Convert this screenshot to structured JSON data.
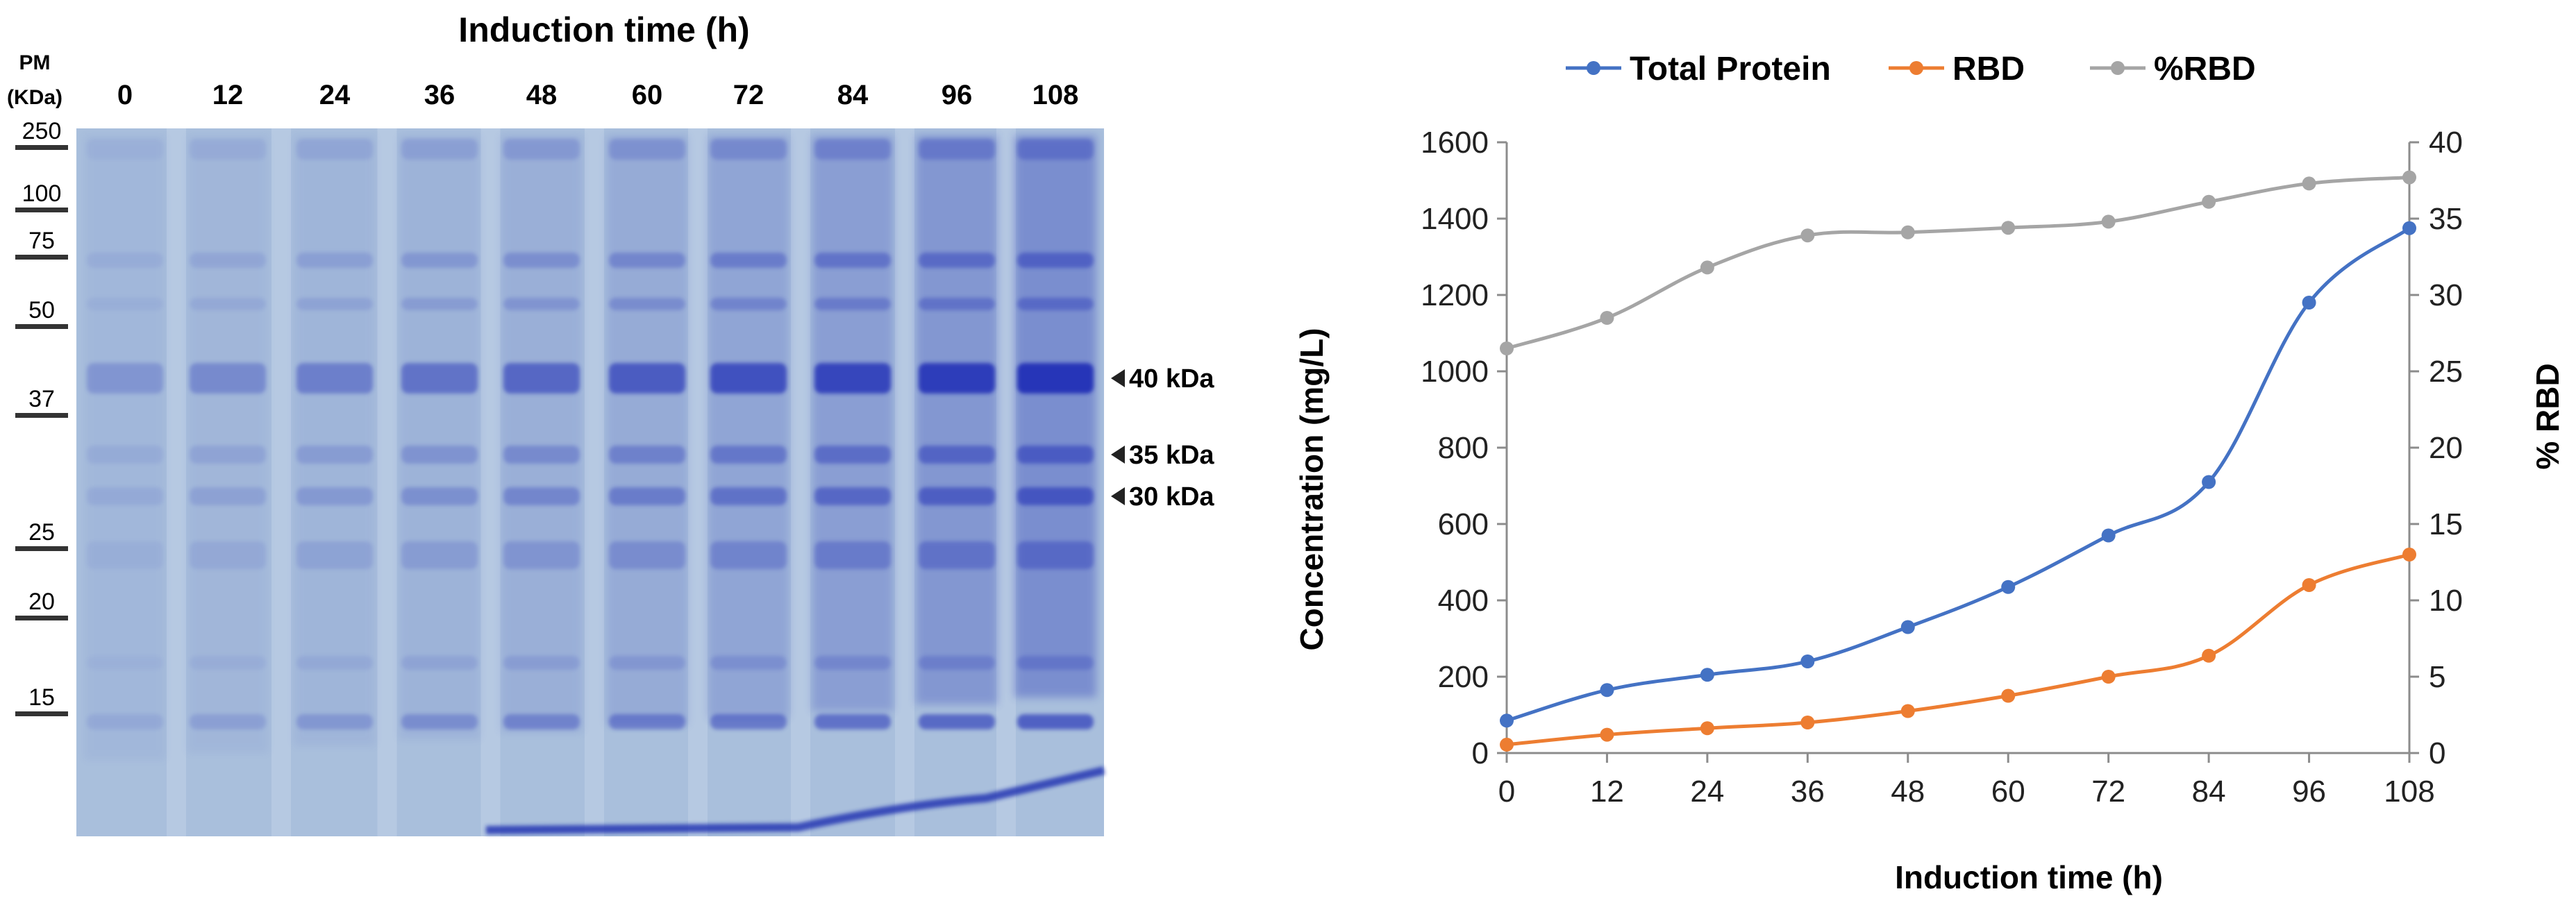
{
  "gel": {
    "title": "Induction time (h)",
    "marker_header_line1": "PM",
    "marker_header_line2": "(KDa)",
    "lanes": [
      "0",
      "12",
      "24",
      "36",
      "48",
      "60",
      "72",
      "84",
      "96",
      "108"
    ],
    "markers": [
      "250",
      "100",
      "75",
      "50",
      "37",
      "25",
      "20",
      "15"
    ],
    "band_labels": [
      "40 kDa",
      "35 kDa",
      "30 kDa"
    ],
    "colors": {
      "gel_bg": "#a9bfdc",
      "band": "#2535b8"
    }
  },
  "chart_data": {
    "type": "line",
    "x": [
      0,
      12,
      24,
      36,
      48,
      60,
      72,
      84,
      96,
      108
    ],
    "xlabel": "Induction time (h)",
    "ylabel": "Concentration  (mg/L)",
    "y2label": "% RBD",
    "ylim": [
      0,
      1600
    ],
    "y2lim": [
      0,
      40
    ],
    "yticks": [
      0,
      200,
      400,
      600,
      800,
      1000,
      1200,
      1400,
      1600
    ],
    "y2ticks": [
      0,
      5,
      10,
      15,
      20,
      25,
      30,
      35,
      40
    ],
    "legend_position": "top",
    "series": [
      {
        "name": "Total Protein",
        "axis": "left",
        "color": "#4472c4",
        "values": [
          85,
          165,
          205,
          240,
          330,
          435,
          570,
          710,
          1180,
          1375
        ]
      },
      {
        "name": "RBD",
        "axis": "left",
        "color": "#ed7d31",
        "values": [
          22,
          48,
          65,
          80,
          110,
          150,
          200,
          255,
          440,
          520
        ]
      },
      {
        "name": "%RBD",
        "axis": "right",
        "color": "#a5a5a5",
        "values": [
          26.5,
          28.5,
          31.8,
          33.9,
          34.1,
          34.4,
          34.8,
          36.1,
          37.3,
          37.7
        ]
      }
    ]
  }
}
